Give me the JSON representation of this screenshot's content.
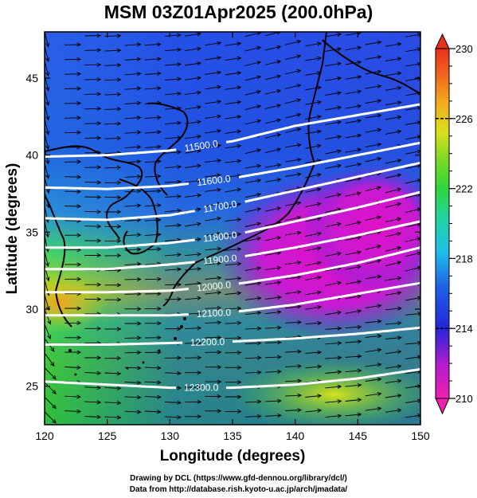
{
  "title": "MSM 03Z01Apr2025 (200.0hPa)",
  "footer": {
    "line1": "Drawing by DCL (https://www.gfd-dennou.org/library/dcl/)",
    "line2": "Data from http://database.rish.kyoto-u.ac.jp/arch/jmadata/"
  },
  "axes": {
    "xlabel": "Longitude (degrees)",
    "ylabel": "Latitude  (degrees)",
    "xlim": [
      120,
      150
    ],
    "ylim": [
      22.5,
      48
    ],
    "xticks": [
      120,
      125,
      130,
      135,
      140,
      145,
      150
    ],
    "yticks": [
      25,
      30,
      35,
      40,
      45
    ]
  },
  "colorbar": {
    "min": 210,
    "max": 230,
    "ticks": [
      210,
      214,
      218,
      222,
      226,
      230
    ],
    "dashed_at": [
      214,
      226
    ]
  },
  "chart_data": {
    "type": "heatmap",
    "title": "MSM 03Z01Apr2025 (200.0hPa)",
    "xlabel": "Longitude (degrees)",
    "ylabel": "Latitude  (degrees)",
    "xlim": [
      120,
      150
    ],
    "ylim": [
      22.5,
      48
    ],
    "shaded_range": [
      210,
      230
    ],
    "contours": [
      {
        "label": "11500.0",
        "label_lon": 132.5,
        "points": [
          [
            120,
            39.9
          ],
          [
            125,
            40.0
          ],
          [
            130,
            40.3
          ],
          [
            135,
            40.9
          ],
          [
            140,
            41.9
          ],
          [
            145,
            42.6
          ],
          [
            150,
            43.3
          ]
        ]
      },
      {
        "label": "11600.0",
        "label_lon": 133.5,
        "points": [
          [
            120,
            37.9
          ],
          [
            125,
            37.8
          ],
          [
            130,
            38.0
          ],
          [
            135,
            38.5
          ],
          [
            140,
            39.2
          ],
          [
            145,
            40.0
          ],
          [
            150,
            40.8
          ]
        ]
      },
      {
        "label": "11700.0",
        "label_lon": 134.0,
        "points": [
          [
            120,
            35.9
          ],
          [
            125,
            35.8
          ],
          [
            130,
            36.1
          ],
          [
            135,
            36.8
          ],
          [
            140,
            37.7
          ],
          [
            145,
            38.6
          ],
          [
            150,
            39.5
          ]
        ]
      },
      {
        "label": "11800.0",
        "label_lon": 134.0,
        "points": [
          [
            120,
            34.0
          ],
          [
            125,
            34.0
          ],
          [
            130,
            34.3
          ],
          [
            135,
            34.8
          ],
          [
            140,
            35.7
          ],
          [
            145,
            36.6
          ],
          [
            150,
            37.6
          ]
        ]
      },
      {
        "label": "11900.0",
        "label_lon": 134.0,
        "points": [
          [
            120,
            32.6
          ],
          [
            125,
            32.6
          ],
          [
            130,
            32.9
          ],
          [
            135,
            33.3
          ],
          [
            140,
            34.0
          ],
          [
            145,
            34.8
          ],
          [
            150,
            35.7
          ]
        ]
      },
      {
        "label": "12000.0",
        "label_lon": 133.5,
        "points": [
          [
            120,
            31.1
          ],
          [
            125,
            31.1
          ],
          [
            130,
            31.2
          ],
          [
            135,
            31.6
          ],
          [
            140,
            32.2
          ],
          [
            145,
            33.0
          ],
          [
            150,
            34.0
          ]
        ]
      },
      {
        "label": "12100.0",
        "label_lon": 133.5,
        "points": [
          [
            120,
            29.6
          ],
          [
            125,
            29.6
          ],
          [
            130,
            29.6
          ],
          [
            135,
            29.8
          ],
          [
            140,
            30.3
          ],
          [
            145,
            31.0
          ],
          [
            150,
            31.7
          ]
        ]
      },
      {
        "label": "12200.0",
        "label_lon": 133.0,
        "points": [
          [
            120,
            27.7
          ],
          [
            125,
            27.7
          ],
          [
            130,
            27.8
          ],
          [
            135,
            27.9
          ],
          [
            140,
            28.1
          ],
          [
            145,
            28.4
          ],
          [
            150,
            28.8
          ]
        ]
      },
      {
        "label": "12300.0",
        "label_lon": 132.5,
        "points": [
          [
            120,
            25.3
          ],
          [
            125,
            25.1
          ],
          [
            130,
            24.9
          ],
          [
            135,
            24.9
          ],
          [
            140,
            25.1
          ],
          [
            145,
            25.5
          ],
          [
            150,
            26.1
          ]
        ]
      }
    ]
  }
}
